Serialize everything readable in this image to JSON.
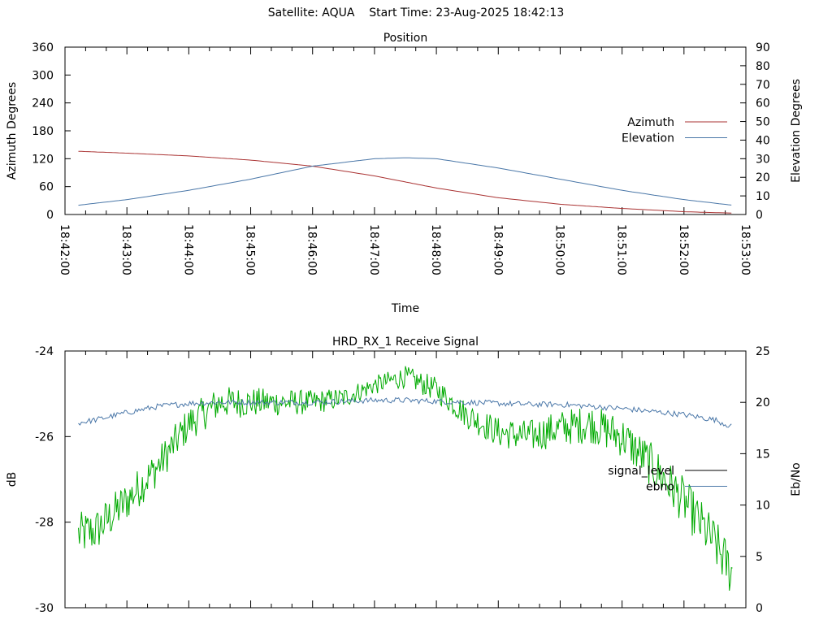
{
  "header": {
    "satellite_label": "Satellite: AQUA",
    "start_time_label": "Start Time: 23-Aug-2025 18:42:13"
  },
  "colors": {
    "azimuth": "#aa3333",
    "elevation": "#4a77a8",
    "signal_level": "#00aa00",
    "signal_level_legend": "#000000",
    "ebno": "#4a77a8"
  },
  "chart_data": [
    {
      "type": "line",
      "title": "Position",
      "xlabel": "Time",
      "ylabel": "Azimuth Degrees",
      "y2label": "Elevation Degrees",
      "xlim": [
        "18:42:00",
        "18:53:00"
      ],
      "ylim": [
        0,
        360
      ],
      "y2lim": [
        0,
        90
      ],
      "x_tick_labels": [
        "18:42:00",
        "18:43:00",
        "18:44:00",
        "18:45:00",
        "18:46:00",
        "18:47:00",
        "18:48:00",
        "18:49:00",
        "18:50:00",
        "18:51:00",
        "18:52:00",
        "18:53:00"
      ],
      "y_tick_labels": [
        "0",
        "60",
        "120",
        "180",
        "240",
        "300",
        "360"
      ],
      "y2_tick_labels": [
        "0",
        "10",
        "20",
        "30",
        "40",
        "50",
        "60",
        "70",
        "80",
        "90"
      ],
      "legend": "right",
      "grid": false,
      "series": [
        {
          "name": "Azimuth",
          "axis": "y",
          "x": [
            "18:42:13",
            "18:43:00",
            "18:44:00",
            "18:45:00",
            "18:46:00",
            "18:47:00",
            "18:48:00",
            "18:49:00",
            "18:50:00",
            "18:51:00",
            "18:52:00",
            "18:52:47"
          ],
          "y": [
            136,
            132,
            126,
            117,
            104,
            83,
            57,
            36,
            22,
            13,
            6,
            3
          ]
        },
        {
          "name": "Elevation",
          "axis": "y2",
          "x": [
            "18:42:13",
            "18:43:00",
            "18:44:00",
            "18:45:00",
            "18:46:00",
            "18:47:00",
            "18:47:30",
            "18:48:00",
            "18:49:00",
            "18:50:00",
            "18:51:00",
            "18:52:00",
            "18:52:47"
          ],
          "y": [
            5,
            8,
            13,
            19,
            26,
            30,
            30.5,
            30,
            25,
            19,
            13,
            8,
            5
          ]
        }
      ]
    },
    {
      "type": "line",
      "title": "HRD_RX_1 Receive Signal",
      "ylabel": "dB",
      "y2label": "Eb/No",
      "ylim": [
        -30,
        -24
      ],
      "y2lim": [
        0,
        25
      ],
      "y_tick_labels": [
        "-30",
        "-28",
        "-26",
        "-24"
      ],
      "y2_tick_labels": [
        "0",
        "5",
        "10",
        "15",
        "20",
        "25"
      ],
      "legend": "right",
      "grid": false,
      "series": [
        {
          "name": "signal_level",
          "axis": "y",
          "x": [
            "18:42:13",
            "18:42:30",
            "18:43:00",
            "18:43:30",
            "18:44:00",
            "18:44:30",
            "18:45:00",
            "18:45:30",
            "18:46:00",
            "18:46:30",
            "18:47:00",
            "18:47:30",
            "18:48:00",
            "18:48:30",
            "18:49:00",
            "18:49:30",
            "18:50:00",
            "18:50:30",
            "18:51:00",
            "18:51:30",
            "18:52:00",
            "18:52:30",
            "18:52:47"
          ],
          "y": [
            -28.3,
            -28.2,
            -27.5,
            -26.7,
            -25.7,
            -25.2,
            -25.2,
            -25.2,
            -25.2,
            -25.1,
            -24.8,
            -24.6,
            -24.9,
            -25.5,
            -25.9,
            -26.0,
            -25.8,
            -25.7,
            -26.0,
            -26.7,
            -27.5,
            -28.5,
            -29.2
          ]
        },
        {
          "name": "ebno",
          "axis": "y2",
          "x": [
            "18:42:13",
            "18:42:30",
            "18:43:00",
            "18:43:30",
            "18:44:00",
            "18:44:30",
            "18:45:00",
            "18:45:30",
            "18:46:00",
            "18:46:30",
            "18:47:00",
            "18:47:30",
            "18:48:00",
            "18:48:30",
            "18:49:00",
            "18:49:30",
            "18:50:00",
            "18:50:30",
            "18:51:00",
            "18:51:30",
            "18:52:00",
            "18:52:30",
            "18:52:47"
          ],
          "y": [
            18.0,
            18.3,
            19.0,
            19.6,
            19.9,
            20.0,
            20.0,
            20.0,
            20.0,
            20.1,
            20.2,
            20.2,
            20.1,
            20.0,
            19.9,
            19.8,
            19.8,
            19.6,
            19.4,
            19.1,
            18.8,
            18.3,
            17.6
          ]
        }
      ]
    }
  ]
}
